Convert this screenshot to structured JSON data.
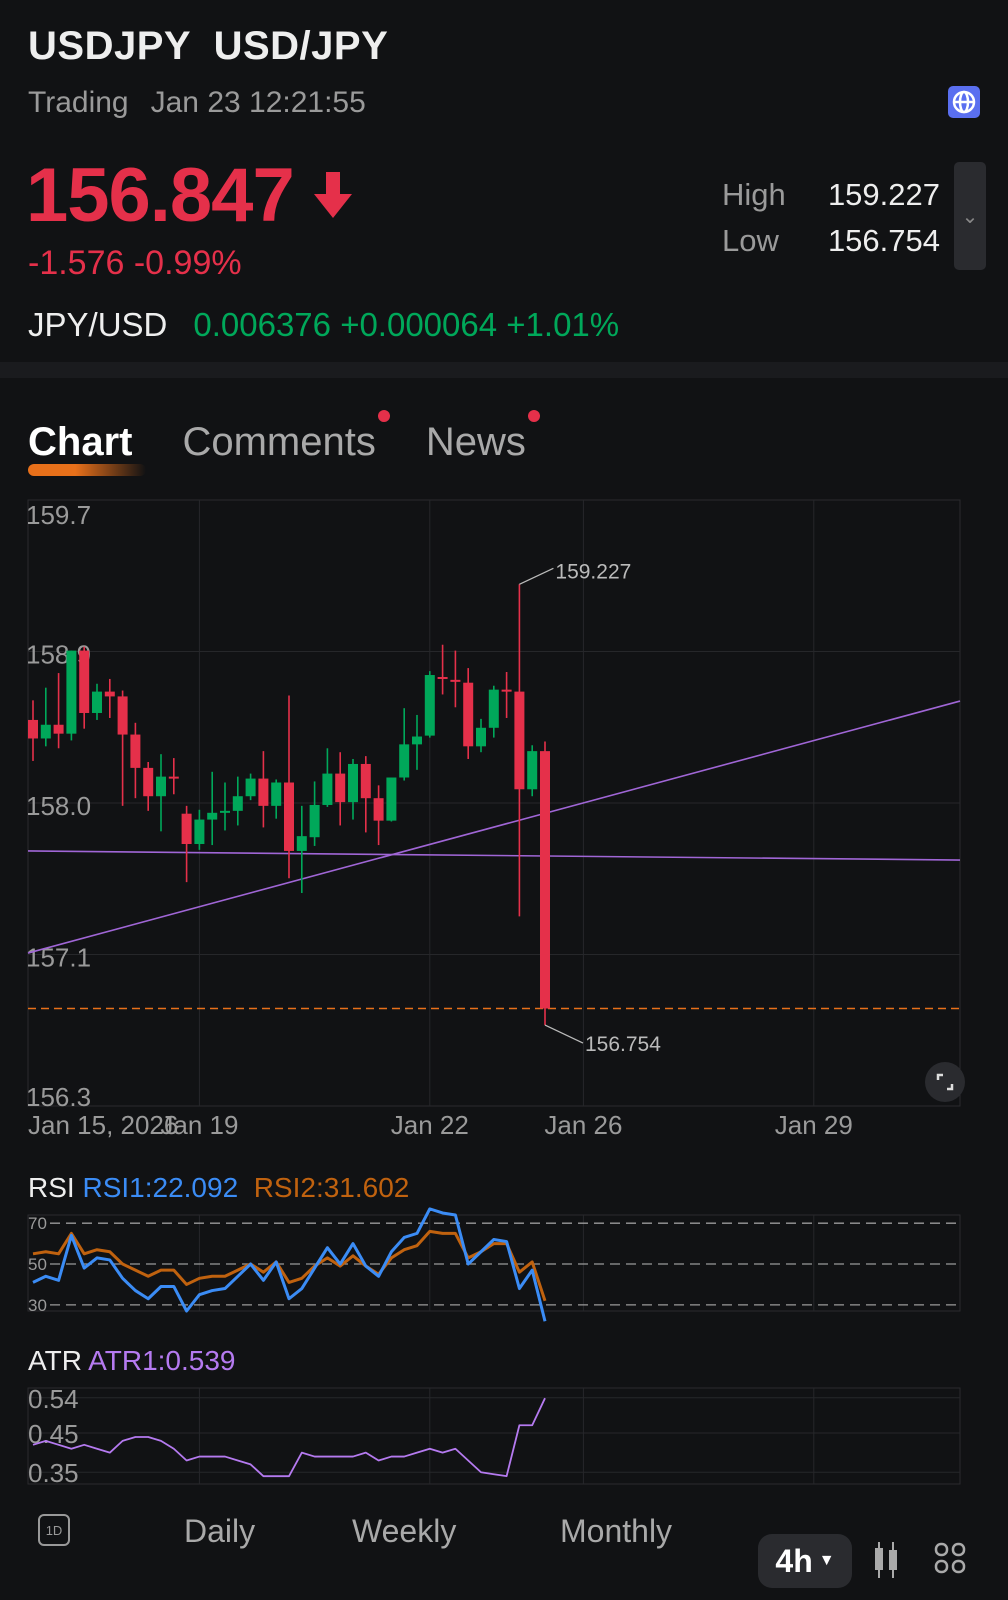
{
  "header": {
    "symbol": "USDJPY",
    "name": "USD/JPY",
    "status": "Trading",
    "datetime": "Jan 23 12:21:55",
    "price": "156.847",
    "change": "-1.576",
    "change_pct": "-0.99%",
    "high_label": "High",
    "high": "159.227",
    "low_label": "Low",
    "low": "156.754",
    "inverse_pair": "JPY/USD",
    "inverse_price": "0.006376",
    "inverse_change": "+0.000064",
    "inverse_change_pct": "+1.01%"
  },
  "colors": {
    "up": "#00a85a",
    "down": "#e5304a",
    "accent": "#e8701a",
    "trend": "#a066d6",
    "rsi1": "#3b8cf5",
    "rsi2": "#c0620f",
    "atr": "#b57af0"
  },
  "tabs": [
    {
      "label": "Chart",
      "active": true
    },
    {
      "label": "Comments",
      "badge": true
    },
    {
      "label": "News",
      "badge": true
    }
  ],
  "chart_data": [
    {
      "type": "candlestick",
      "ylim": [
        156.3,
        159.7
      ],
      "y_ticks": [
        "159.7",
        "158.9",
        "158.0",
        "157.1",
        "156.3"
      ],
      "x_ticks": [
        "Jan 15, 2026",
        "Jan 19",
        "Jan 22",
        "Jan 26",
        "Jan 29"
      ],
      "grid": true,
      "ohlc": [
        [
          158.466,
          158.576,
          158.236,
          158.362
        ],
        [
          158.362,
          158.647,
          158.318,
          158.439
        ],
        [
          158.439,
          158.729,
          158.307,
          158.389
        ],
        [
          158.389,
          158.855,
          158.351,
          158.855
        ],
        [
          158.855,
          158.877,
          158.417,
          158.505
        ],
        [
          158.505,
          158.669,
          158.466,
          158.625
        ],
        [
          158.625,
          158.696,
          158.477,
          158.598
        ],
        [
          158.598,
          158.631,
          157.984,
          158.384
        ],
        [
          158.384,
          158.45,
          158.027,
          158.197
        ],
        [
          158.197,
          158.23,
          157.956,
          158.038
        ],
        [
          158.038,
          158.274,
          157.841,
          158.148
        ],
        [
          158.148,
          158.252,
          158.049,
          158.143
        ],
        [
          157.94,
          157.984,
          157.556,
          157.77
        ],
        [
          157.77,
          157.962,
          157.737,
          157.907
        ],
        [
          157.907,
          158.175,
          157.764,
          157.945
        ],
        [
          157.945,
          158.115,
          157.846,
          157.956
        ],
        [
          157.956,
          158.148,
          157.874,
          158.038
        ],
        [
          158.038,
          158.165,
          158.016,
          158.137
        ],
        [
          158.137,
          158.291,
          157.863,
          157.984
        ],
        [
          157.984,
          158.132,
          157.912,
          158.115
        ],
        [
          158.115,
          158.603,
          157.578,
          157.731
        ],
        [
          157.731,
          157.984,
          157.495,
          157.814
        ],
        [
          157.808,
          158.121,
          157.759,
          157.989
        ],
        [
          157.989,
          158.307,
          157.978,
          158.165
        ],
        [
          158.165,
          158.285,
          157.874,
          158.005
        ],
        [
          158.005,
          158.247,
          157.907,
          158.219
        ],
        [
          158.219,
          158.263,
          157.835,
          158.027
        ],
        [
          158.027,
          158.099,
          157.764,
          157.901
        ],
        [
          157.901,
          158.143,
          157.896,
          158.143
        ],
        [
          158.143,
          158.532,
          158.126,
          158.329
        ],
        [
          158.329,
          158.494,
          158.186,
          158.373
        ],
        [
          158.378,
          158.74,
          158.367,
          158.718
        ],
        [
          158.707,
          158.888,
          158.609,
          158.696
        ],
        [
          158.691,
          158.855,
          158.537,
          158.68
        ],
        [
          158.675,
          158.757,
          158.247,
          158.318
        ],
        [
          158.318,
          158.472,
          158.285,
          158.422
        ],
        [
          158.422,
          158.658,
          158.367,
          158.636
        ],
        [
          158.636,
          158.735,
          158.477,
          158.631
        ],
        [
          158.625,
          159.227,
          157.364,
          158.077
        ],
        [
          158.077,
          158.324,
          158.038,
          158.291
        ],
        [
          158.291,
          158.345,
          156.754,
          156.847
        ]
      ],
      "current_price": 156.847,
      "annotations": [
        {
          "label": "159.227",
          "value": 159.227
        },
        {
          "label": "156.754",
          "value": 156.754
        }
      ],
      "trend_lines": [
        [
          157.731,
          157.68
        ],
        [
          157.158,
          158.572
        ]
      ]
    },
    {
      "type": "line",
      "title": "RSI",
      "ylim": [
        27,
        74
      ],
      "y_ticks": [
        "70",
        "50",
        "30"
      ],
      "series": [
        {
          "name": "RSI1:22.092",
          "values": [
            41,
            44,
            42,
            64,
            48,
            53,
            52,
            43,
            37,
            33,
            39,
            39,
            27,
            35,
            37,
            38,
            44,
            50,
            42,
            51,
            33,
            38,
            48,
            58,
            50,
            60,
            49,
            44,
            56,
            63,
            65,
            77,
            75,
            74,
            50,
            56,
            62,
            61,
            38,
            47,
            22
          ]
        },
        {
          "name": "RSI2:31.602",
          "values": [
            55,
            56,
            55,
            65,
            55,
            57,
            56,
            50,
            47,
            44,
            47,
            47,
            40,
            43,
            44,
            44,
            47,
            50,
            46,
            51,
            41,
            43,
            49,
            53,
            49,
            54,
            49,
            45,
            53,
            57,
            59,
            66,
            65,
            65,
            53,
            56,
            60,
            60,
            46,
            51,
            32
          ]
        }
      ]
    },
    {
      "type": "line",
      "title": "ATR",
      "ylim": [
        0.32,
        0.565
      ],
      "y_ticks": [
        "0.54",
        "0.45",
        "0.35"
      ],
      "series": [
        {
          "name": "ATR1:0.539",
          "values": [
            0.42,
            0.43,
            0.42,
            0.41,
            0.42,
            0.41,
            0.4,
            0.43,
            0.44,
            0.44,
            0.43,
            0.41,
            0.38,
            0.39,
            0.39,
            0.39,
            0.38,
            0.37,
            0.34,
            0.34,
            0.34,
            0.4,
            0.39,
            0.39,
            0.39,
            0.39,
            0.4,
            0.38,
            0.39,
            0.39,
            0.4,
            0.41,
            0.4,
            0.41,
            0.38,
            0.35,
            0.345,
            0.34,
            0.47,
            0.47,
            0.539
          ]
        }
      ]
    }
  ],
  "bottom_bar": {
    "day_icon_label": "1D",
    "daily": "Daily",
    "weekly": "Weekly",
    "monthly": "Monthly",
    "timeframe": "4h"
  }
}
